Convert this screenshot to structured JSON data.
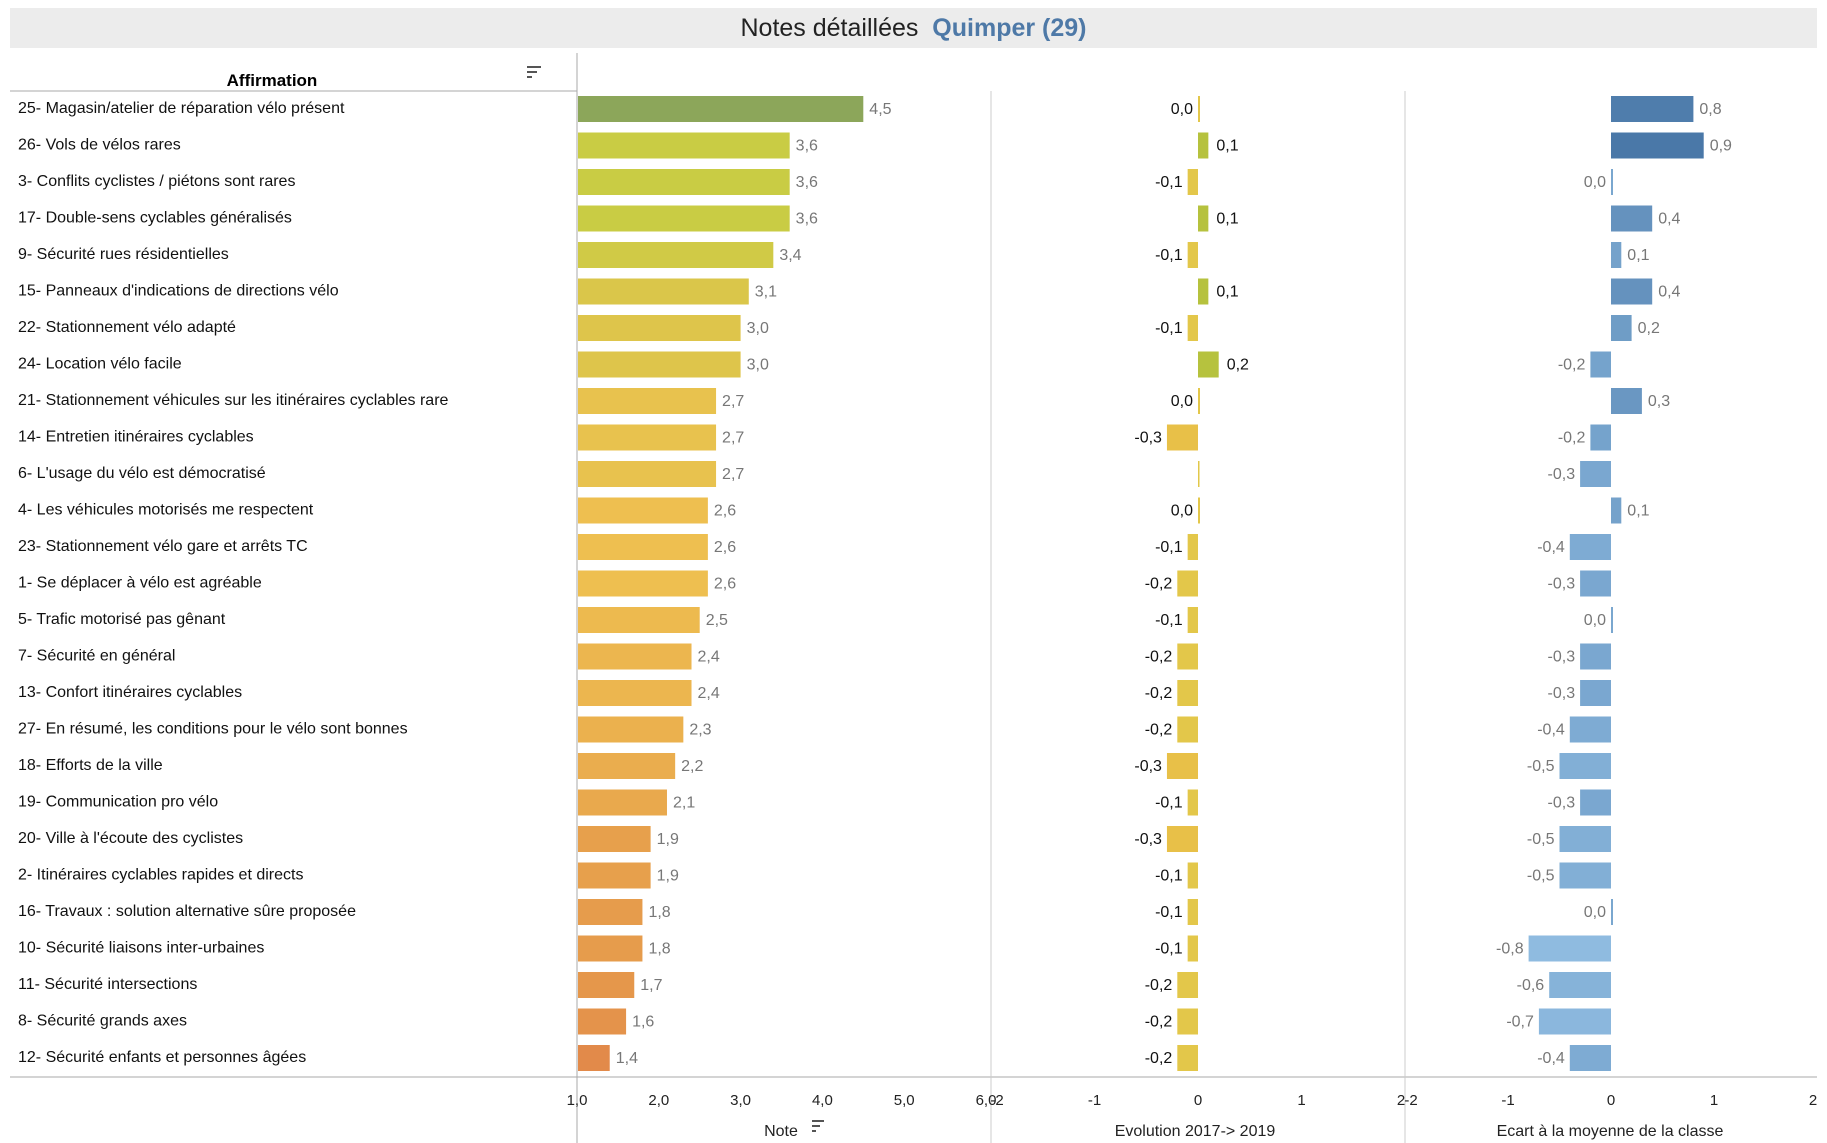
{
  "header": {
    "title": "Notes détaillées",
    "location": "Quimper (29)"
  },
  "table": {
    "column_header": "Affirmation"
  },
  "colors": {
    "blue_dark": "#4a78a8",
    "blue_light": "#93bfe3",
    "green": "#8ca65a",
    "yellow": "#ddc84a",
    "orange": "#e28a4a",
    "grid": "#d0d0d0"
  },
  "chart_data": [
    {
      "type": "bar",
      "orientation": "horizontal",
      "xlabel": "Note",
      "xlim": [
        1.0,
        6.0
      ],
      "ticks": [
        "1,0",
        "2,0",
        "3,0",
        "4,0",
        "5,0",
        "6,0"
      ],
      "categories": [
        "25- Magasin/atelier de réparation vélo présent",
        "26- Vols de vélos rares",
        "3- Conflits cyclistes / piétons sont rares",
        "17- Double-sens cyclables généralisés",
        "9- Sécurité rues résidentielles",
        "15- Panneaux d'indications de directions vélo",
        "22- Stationnement vélo adapté",
        "24- Location vélo facile",
        "21- Stationnement véhicules sur les itinéraires cyclables rare",
        "14- Entretien itinéraires cyclables",
        "6- L'usage du vélo est démocratisé",
        "4- Les véhicules motorisés me respectent",
        "23- Stationnement vélo gare et arrêts TC",
        "1- Se déplacer à vélo est agréable",
        "5- Trafic motorisé pas gênant",
        "7- Sécurité en général",
        "13- Confort itinéraires cyclables",
        "27- En résumé, les conditions pour le vélo sont bonnes",
        "18- Efforts de la ville",
        "19- Communication pro vélo",
        "20- Ville à l'écoute des cyclistes",
        "2- Itinéraires cyclables rapides et directs",
        "16- Travaux : solution alternative sûre proposée",
        "10- Sécurité liaisons inter-urbaines",
        "11- Sécurité intersections",
        "8- Sécurité grands axes",
        "12- Sécurité enfants et personnes âgées"
      ],
      "values": [
        4.5,
        3.6,
        3.6,
        3.6,
        3.4,
        3.1,
        3.0,
        3.0,
        2.7,
        2.7,
        2.7,
        2.6,
        2.6,
        2.6,
        2.5,
        2.4,
        2.4,
        2.3,
        2.2,
        2.1,
        1.9,
        1.9,
        1.8,
        1.8,
        1.7,
        1.6,
        1.4
      ],
      "labels": [
        "4,5",
        "3,6",
        "3,6",
        "3,6",
        "3,4",
        "3,1",
        "3,0",
        "3,0",
        "2,7",
        "2,7",
        "2,7",
        "2,6",
        "2,6",
        "2,6",
        "2,5",
        "2,4",
        "2,4",
        "2,3",
        "2,2",
        "2,1",
        "1,9",
        "1,9",
        "1,8",
        "1,8",
        "1,7",
        "1,6",
        "1,4"
      ]
    },
    {
      "type": "bar",
      "orientation": "horizontal",
      "xlabel": "Evolution 2017-> 2019",
      "xlim": [
        -2,
        2
      ],
      "ticks": [
        "-2",
        "-1",
        "0",
        "1",
        "2"
      ],
      "values": [
        0.0,
        0.1,
        -0.1,
        0.1,
        -0.1,
        0.1,
        -0.1,
        0.2,
        0.0,
        -0.3,
        null,
        0.0,
        -0.1,
        -0.2,
        -0.1,
        -0.2,
        -0.2,
        -0.2,
        -0.3,
        -0.1,
        -0.3,
        -0.1,
        -0.1,
        -0.1,
        -0.2,
        -0.2,
        -0.2
      ],
      "labels": [
        "0,0",
        "0,1",
        "-0,1",
        "0,1",
        "-0,1",
        "0,1",
        "-0,1",
        "0,2",
        "0,0",
        "-0,3",
        "",
        "0,0",
        "-0,1",
        "-0,2",
        "-0,1",
        "-0,2",
        "-0,2",
        "-0,2",
        "-0,3",
        "-0,1",
        "-0,3",
        "-0,1",
        "-0,1",
        "-0,1",
        "-0,2",
        "-0,2",
        "-0,2"
      ]
    },
    {
      "type": "bar",
      "orientation": "horizontal",
      "xlabel": "Ecart à la moyenne de la classe",
      "xlim": [
        -2,
        2
      ],
      "ticks": [
        "-2",
        "-1",
        "0",
        "1",
        "2"
      ],
      "values": [
        0.8,
        0.9,
        0.0,
        0.4,
        0.1,
        0.4,
        0.2,
        -0.2,
        0.3,
        -0.2,
        -0.3,
        0.1,
        -0.4,
        -0.3,
        0.0,
        -0.3,
        -0.3,
        -0.4,
        -0.5,
        -0.3,
        -0.5,
        -0.5,
        0.0,
        -0.8,
        -0.6,
        -0.7,
        -0.4
      ],
      "labels": [
        "0,8",
        "0,9",
        "0,0",
        "0,4",
        "0,1",
        "0,4",
        "0,2",
        "-0,2",
        "0,3",
        "-0,2",
        "-0,3",
        "0,1",
        "-0,4",
        "-0,3",
        "0,0",
        "-0,3",
        "-0,3",
        "-0,4",
        "-0,5",
        "-0,3",
        "-0,5",
        "-0,5",
        "0,0",
        "-0,8",
        "-0,6",
        "-0,7",
        "-0,4"
      ]
    }
  ]
}
